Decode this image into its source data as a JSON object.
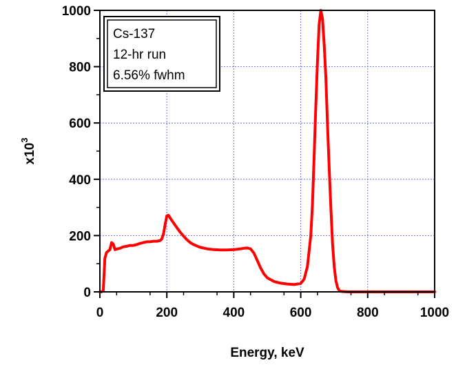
{
  "chart_data": {
    "type": "line",
    "xlabel": "Energy, keV",
    "ylabel_base": "x10",
    "ylabel_exp": "3",
    "xlim": [
      0,
      1000
    ],
    "ylim": [
      0,
      1000
    ],
    "xticks": [
      0,
      200,
      400,
      600,
      800,
      1000
    ],
    "yticks": [
      0,
      200,
      400,
      600,
      800,
      1000
    ],
    "grid": true,
    "legend_lines": [
      "Cs-137",
      "12-hr run",
      "6.56% fwhm"
    ],
    "legend_position": "top-left",
    "series_color": "#ff0000",
    "series": [
      {
        "x": [
          0,
          5,
          10,
          15,
          20,
          25,
          30,
          35,
          40,
          45,
          50,
          60,
          70,
          80,
          90,
          100,
          110,
          120,
          130,
          140,
          150,
          160,
          170,
          180,
          185,
          190,
          195,
          200,
          205,
          210,
          220,
          230,
          240,
          250,
          260,
          270,
          280,
          290,
          300,
          320,
          340,
          360,
          380,
          400,
          420,
          430,
          440,
          450,
          460,
          470,
          480,
          490,
          500,
          520,
          540,
          560,
          580,
          600,
          610,
          620,
          630,
          635,
          640,
          645,
          650,
          655,
          660,
          665,
          670,
          675,
          680,
          685,
          690,
          695,
          700,
          705,
          710,
          715,
          720,
          740,
          760,
          800,
          850,
          900,
          950,
          1000
        ],
        "y": [
          0,
          0,
          5,
          120,
          140,
          145,
          150,
          175,
          170,
          150,
          152,
          155,
          160,
          162,
          165,
          165,
          168,
          172,
          175,
          178,
          178,
          180,
          180,
          182,
          188,
          205,
          240,
          270,
          272,
          262,
          245,
          228,
          212,
          198,
          185,
          175,
          168,
          163,
          158,
          153,
          150,
          149,
          149,
          150,
          153,
          155,
          156,
          153,
          138,
          112,
          85,
          64,
          50,
          37,
          31,
          28,
          26,
          30,
          45,
          90,
          200,
          310,
          480,
          660,
          820,
          950,
          1000,
          970,
          880,
          760,
          590,
          440,
          300,
          170,
          90,
          40,
          15,
          5,
          2,
          0,
          0,
          0,
          0,
          0,
          0,
          0
        ]
      }
    ]
  }
}
